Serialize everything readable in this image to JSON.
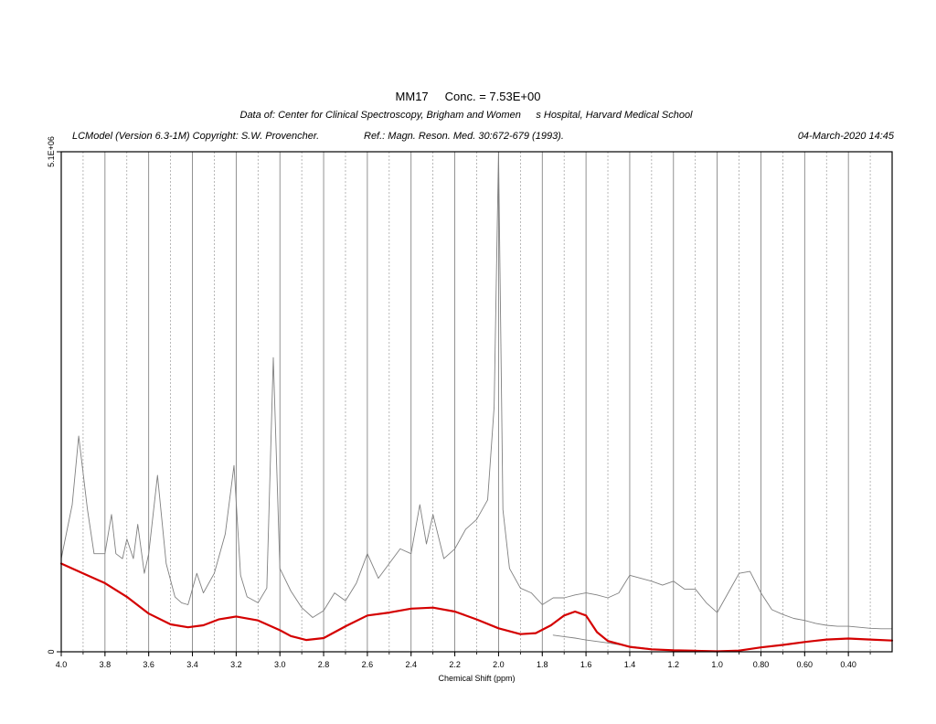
{
  "header": {
    "metabolite": "MM17",
    "concentration": "Conc. = 7.53E+00",
    "data_source": "Data of: Center for Clinical Spectroscopy, Brigham and Women\u0000\u0000s Hospital, Harvard Medical School",
    "program": "LCModel (Version 6.3-1M) Copyright: S.W. Provencher.",
    "reference": "Ref.: Magn. Reson. Med. 30:672-679 (1993).",
    "date": "04-March-2020  14:45"
  },
  "colors": {
    "data_line": "#808080",
    "fit_line": "#d40000",
    "grid_major": "#777777",
    "grid_minor": "#9a9a9a",
    "axes": "#000000"
  },
  "chart_data": {
    "type": "line",
    "xlabel": "Chemical Shift (ppm)",
    "ylabel": "",
    "xlim": [
      4.0,
      0.2
    ],
    "x_reversed": true,
    "ylim": [
      0,
      5100000
    ],
    "y_tick_labels": [
      "0",
      "5.1E+06"
    ],
    "x_tick_labels": [
      "4.0",
      "3.8",
      "3.6",
      "3.4",
      "3.2",
      "3.0",
      "2.8",
      "2.6",
      "2.4",
      "2.2",
      "2.0",
      "1.8",
      "1.6",
      "1.4",
      "1.2",
      "1.0",
      "0.80",
      "0.60",
      "0.40"
    ],
    "x_ticks": [
      4.0,
      3.8,
      3.6,
      3.4,
      3.2,
      3.0,
      2.8,
      2.6,
      2.4,
      2.2,
      2.0,
      1.8,
      1.6,
      1.4,
      1.2,
      1.0,
      0.8,
      0.6,
      0.4
    ],
    "grid": true,
    "series": [
      {
        "role": "spectrum",
        "x": [
          4.0,
          3.95,
          3.92,
          3.88,
          3.85,
          3.8,
          3.77,
          3.75,
          3.72,
          3.7,
          3.67,
          3.65,
          3.62,
          3.6,
          3.56,
          3.52,
          3.48,
          3.45,
          3.42,
          3.38,
          3.35,
          3.3,
          3.25,
          3.21,
          3.18,
          3.15,
          3.1,
          3.06,
          3.03,
          3.0,
          2.95,
          2.9,
          2.85,
          2.8,
          2.75,
          2.7,
          2.65,
          2.6,
          2.55,
          2.5,
          2.45,
          2.4,
          2.36,
          2.33,
          2.3,
          2.25,
          2.2,
          2.15,
          2.1,
          2.05,
          2.02,
          2.0,
          1.98,
          1.95,
          1.9,
          1.85,
          1.8,
          1.75,
          1.7,
          1.65,
          1.6,
          1.55,
          1.5,
          1.45,
          1.4,
          1.35,
          1.3,
          1.25,
          1.2,
          1.15,
          1.1,
          1.05,
          1.0,
          0.95,
          0.9,
          0.85,
          0.8,
          0.75,
          0.7,
          0.65,
          0.6,
          0.55,
          0.5,
          0.45,
          0.4,
          0.35,
          0.3,
          0.25,
          0.2
        ],
        "y": [
          950000,
          1500000,
          2200000,
          1450000,
          1000000,
          1000000,
          1400000,
          1000000,
          950000,
          1150000,
          950000,
          1300000,
          800000,
          1000000,
          1800000,
          900000,
          560000,
          500000,
          480000,
          800000,
          600000,
          800000,
          1200000,
          1900000,
          780000,
          560000,
          500000,
          650000,
          3000000,
          850000,
          620000,
          450000,
          350000,
          420000,
          600000,
          520000,
          700000,
          1000000,
          750000,
          900000,
          1050000,
          1000000,
          1500000,
          1100000,
          1400000,
          950000,
          1050000,
          1250000,
          1350000,
          1550000,
          2500000,
          5100000,
          1450000,
          850000,
          650000,
          600000,
          480000,
          550000,
          550000,
          580000,
          600000,
          580000,
          550000,
          600000,
          780000,
          750000,
          720000,
          680000,
          720000,
          640000,
          640000,
          500000,
          400000,
          600000,
          800000,
          820000,
          600000,
          430000,
          380000,
          340000,
          320000,
          290000,
          270000,
          260000,
          260000,
          250000,
          240000,
          235000,
          235000
        ]
      },
      {
        "role": "fit",
        "x": [
          4.0,
          3.9,
          3.8,
          3.7,
          3.6,
          3.5,
          3.42,
          3.35,
          3.28,
          3.2,
          3.1,
          3.0,
          2.95,
          2.88,
          2.8,
          2.7,
          2.6,
          2.5,
          2.4,
          2.3,
          2.2,
          2.1,
          2.0,
          1.9,
          1.83,
          1.76,
          1.7,
          1.65,
          1.6,
          1.55,
          1.5,
          1.4,
          1.3,
          1.2,
          1.1,
          1.0,
          0.9,
          0.8,
          0.7,
          0.6,
          0.5,
          0.4,
          0.3,
          0.2
        ],
        "y": [
          900000,
          800000,
          700000,
          560000,
          390000,
          280000,
          250000,
          270000,
          330000,
          360000,
          320000,
          220000,
          160000,
          120000,
          140000,
          260000,
          370000,
          400000,
          440000,
          450000,
          410000,
          330000,
          240000,
          180000,
          190000,
          270000,
          370000,
          410000,
          370000,
          200000,
          110000,
          50000,
          25000,
          15000,
          10000,
          5000,
          12000,
          45000,
          70000,
          100000,
          125000,
          135000,
          125000,
          115000
        ]
      },
      {
        "role": "baseline",
        "x": [
          1.75,
          1.7,
          1.65,
          1.6,
          1.5,
          1.4,
          1.3,
          1.2,
          1.1,
          1.0
        ],
        "y": [
          170000,
          155000,
          140000,
          120000,
          90000,
          55000,
          30000,
          15000,
          8000,
          5000
        ]
      }
    ]
  }
}
